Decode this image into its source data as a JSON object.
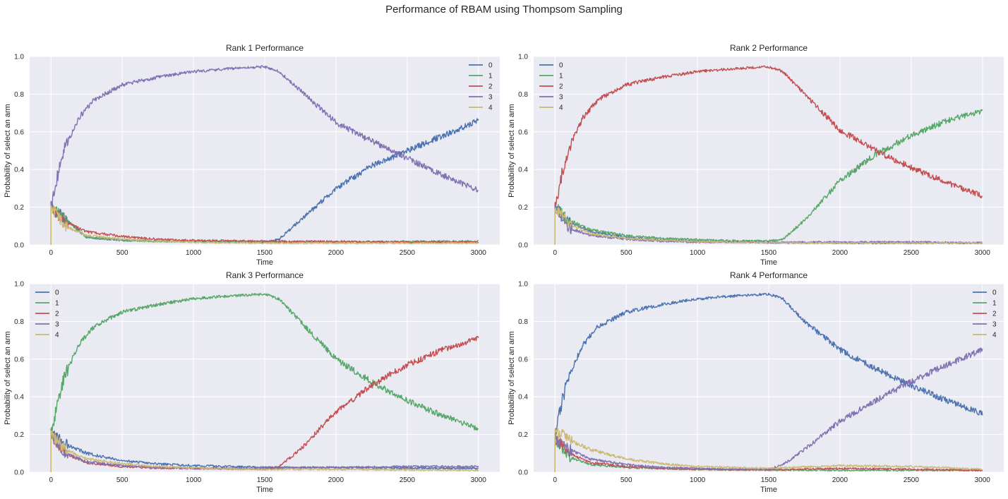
{
  "figure_title": "Performance of RBAM using Thompsom Sampling",
  "colors": {
    "background": "#EAEAF2",
    "grid": "#FFFFFF",
    "series": [
      "#4C72B0",
      "#55A868",
      "#C44E52",
      "#8172B2",
      "#CCB974"
    ]
  },
  "chart_data": [
    {
      "type": "line",
      "title": "Rank 1 Performance",
      "xlabel": "Time",
      "ylabel": "Probability of select an arm",
      "xlim": [
        -150,
        3150
      ],
      "ylim": [
        0.0,
        1.0
      ],
      "xticks": [
        0,
        500,
        1000,
        1500,
        2000,
        2500,
        3000
      ],
      "yticks": [
        0.0,
        0.2,
        0.4,
        0.6,
        0.8,
        1.0
      ],
      "legend_loc": "upper right",
      "legend": [
        "0",
        "1",
        "2",
        "3",
        "4"
      ],
      "series": [
        {
          "name": "0",
          "x": [
            0,
            250,
            500,
            750,
            1000,
            1250,
            1500,
            1600,
            1750,
            2000,
            2250,
            2500,
            2750,
            3000
          ],
          "y": [
            0.2,
            0.04,
            0.025,
            0.02,
            0.018,
            0.015,
            0.015,
            0.03,
            0.13,
            0.3,
            0.42,
            0.5,
            0.58,
            0.66
          ]
        },
        {
          "name": "1",
          "x": [
            0,
            250,
            500,
            750,
            1000,
            1500,
            2000,
            2500,
            3000
          ],
          "y": [
            0.2,
            0.04,
            0.025,
            0.02,
            0.018,
            0.015,
            0.015,
            0.018,
            0.02
          ]
        },
        {
          "name": "2",
          "x": [
            0,
            100,
            250,
            500,
            750,
            1000,
            1500,
            2000,
            2500,
            3000
          ],
          "y": [
            0.2,
            0.12,
            0.07,
            0.045,
            0.03,
            0.025,
            0.02,
            0.018,
            0.015,
            0.015
          ]
        },
        {
          "name": "3",
          "x": [
            0,
            50,
            100,
            200,
            300,
            500,
            750,
            1000,
            1250,
            1500,
            1600,
            1750,
            2000,
            2250,
            2500,
            2750,
            3000
          ],
          "y": [
            0.2,
            0.38,
            0.52,
            0.68,
            0.77,
            0.85,
            0.89,
            0.92,
            0.935,
            0.945,
            0.92,
            0.82,
            0.65,
            0.55,
            0.46,
            0.37,
            0.29
          ]
        },
        {
          "name": "4",
          "x": [
            0,
            100,
            250,
            500,
            750,
            1000,
            1500,
            2000,
            2500,
            3000
          ],
          "y": [
            0.2,
            0.1,
            0.05,
            0.03,
            0.02,
            0.015,
            0.01,
            0.01,
            0.01,
            0.01
          ]
        }
      ]
    },
    {
      "type": "line",
      "title": "Rank 2 Performance",
      "xlabel": "Time",
      "ylabel": "Probability of select an arm",
      "xlim": [
        -150,
        3150
      ],
      "ylim": [
        0.0,
        1.0
      ],
      "xticks": [
        0,
        500,
        1000,
        1500,
        2000,
        2500,
        3000
      ],
      "yticks": [
        0.0,
        0.2,
        0.4,
        0.6,
        0.8,
        1.0
      ],
      "legend_loc": "upper left",
      "legend": [
        "0",
        "1",
        "2",
        "3",
        "4"
      ],
      "series": [
        {
          "name": "0",
          "x": [
            0,
            100,
            250,
            500,
            750,
            1000,
            1500,
            2000,
            2500,
            3000
          ],
          "y": [
            0.2,
            0.12,
            0.07,
            0.04,
            0.025,
            0.02,
            0.012,
            0.01,
            0.01,
            0.01
          ]
        },
        {
          "name": "1",
          "x": [
            0,
            100,
            250,
            500,
            750,
            1000,
            1250,
            1500,
            1600,
            1750,
            2000,
            2250,
            2500,
            2750,
            3000
          ],
          "y": [
            0.2,
            0.13,
            0.08,
            0.05,
            0.035,
            0.028,
            0.022,
            0.02,
            0.03,
            0.13,
            0.34,
            0.48,
            0.58,
            0.66,
            0.71
          ]
        },
        {
          "name": "2",
          "x": [
            0,
            50,
            100,
            200,
            300,
            500,
            750,
            1000,
            1250,
            1500,
            1600,
            1750,
            2000,
            2250,
            2500,
            2750,
            3000
          ],
          "y": [
            0.2,
            0.38,
            0.52,
            0.68,
            0.77,
            0.85,
            0.89,
            0.92,
            0.935,
            0.945,
            0.92,
            0.8,
            0.61,
            0.5,
            0.41,
            0.33,
            0.26
          ]
        },
        {
          "name": "3",
          "x": [
            0,
            100,
            250,
            500,
            750,
            1000,
            1500,
            2000,
            2500,
            3000
          ],
          "y": [
            0.2,
            0.09,
            0.05,
            0.03,
            0.02,
            0.015,
            0.015,
            0.015,
            0.015,
            0.012
          ]
        },
        {
          "name": "4",
          "x": [
            0,
            100,
            250,
            500,
            750,
            1000,
            1500,
            2000,
            2500,
            3000
          ],
          "y": [
            0.2,
            0.11,
            0.06,
            0.035,
            0.025,
            0.018,
            0.012,
            0.01,
            0.01,
            0.01
          ]
        }
      ]
    },
    {
      "type": "line",
      "title": "Rank 3 Performance",
      "xlabel": "Time",
      "ylabel": "Probability of select an arm",
      "xlim": [
        -150,
        3150
      ],
      "ylim": [
        0.0,
        1.0
      ],
      "xticks": [
        0,
        500,
        1000,
        1500,
        2000,
        2500,
        3000
      ],
      "yticks": [
        0.0,
        0.2,
        0.4,
        0.6,
        0.8,
        1.0
      ],
      "legend_loc": "upper left",
      "legend": [
        "0",
        "1",
        "2",
        "3",
        "4"
      ],
      "series": [
        {
          "name": "0",
          "x": [
            0,
            100,
            250,
            500,
            750,
            1000,
            1500,
            2000,
            2500,
            3000
          ],
          "y": [
            0.2,
            0.15,
            0.1,
            0.06,
            0.045,
            0.035,
            0.025,
            0.025,
            0.022,
            0.02
          ]
        },
        {
          "name": "1",
          "x": [
            0,
            50,
            100,
            200,
            300,
            500,
            750,
            1000,
            1250,
            1500,
            1600,
            1750,
            2000,
            2250,
            2500,
            2750,
            3000
          ],
          "y": [
            0.2,
            0.38,
            0.52,
            0.68,
            0.77,
            0.85,
            0.89,
            0.92,
            0.935,
            0.945,
            0.92,
            0.8,
            0.6,
            0.48,
            0.38,
            0.3,
            0.23
          ]
        },
        {
          "name": "2",
          "x": [
            0,
            100,
            250,
            500,
            750,
            1000,
            1250,
            1500,
            1600,
            1750,
            2000,
            2250,
            2500,
            2750,
            3000
          ],
          "y": [
            0.2,
            0.1,
            0.05,
            0.03,
            0.022,
            0.02,
            0.018,
            0.015,
            0.03,
            0.12,
            0.32,
            0.46,
            0.57,
            0.65,
            0.71
          ]
        },
        {
          "name": "3",
          "x": [
            0,
            100,
            250,
            500,
            750,
            1000,
            1500,
            2000,
            2500,
            3000
          ],
          "y": [
            0.2,
            0.1,
            0.055,
            0.035,
            0.025,
            0.02,
            0.02,
            0.025,
            0.03,
            0.03
          ]
        },
        {
          "name": "4",
          "x": [
            0,
            100,
            250,
            500,
            750,
            1000,
            1500,
            2000,
            2500,
            3000
          ],
          "y": [
            0.2,
            0.12,
            0.07,
            0.045,
            0.03,
            0.022,
            0.015,
            0.015,
            0.012,
            0.01
          ]
        }
      ]
    },
    {
      "type": "line",
      "title": "Rank 4 Performance",
      "xlabel": "Time",
      "ylabel": "Probability of select an arm",
      "xlim": [
        -150,
        3150
      ],
      "ylim": [
        0.0,
        1.0
      ],
      "xticks": [
        0,
        500,
        1000,
        1500,
        2000,
        2500,
        3000
      ],
      "yticks": [
        0.0,
        0.2,
        0.4,
        0.6,
        0.8,
        1.0
      ],
      "legend_loc": "upper right",
      "legend": [
        "0",
        "1",
        "2",
        "3",
        "4"
      ],
      "series": [
        {
          "name": "0",
          "x": [
            0,
            50,
            100,
            200,
            300,
            500,
            750,
            1000,
            1250,
            1500,
            1600,
            1750,
            2000,
            2250,
            2500,
            2750,
            3000
          ],
          "y": [
            0.2,
            0.38,
            0.52,
            0.68,
            0.77,
            0.85,
            0.89,
            0.92,
            0.935,
            0.945,
            0.92,
            0.8,
            0.65,
            0.55,
            0.46,
            0.38,
            0.31
          ]
        },
        {
          "name": "1",
          "x": [
            0,
            100,
            250,
            500,
            750,
            1000,
            1500,
            2000,
            2500,
            3000
          ],
          "y": [
            0.18,
            0.08,
            0.04,
            0.025,
            0.02,
            0.015,
            0.012,
            0.01,
            0.01,
            0.01
          ]
        },
        {
          "name": "2",
          "x": [
            0,
            100,
            250,
            500,
            750,
            1000,
            1500,
            2000,
            2500,
            3000
          ],
          "y": [
            0.18,
            0.1,
            0.05,
            0.03,
            0.02,
            0.015,
            0.012,
            0.02,
            0.015,
            0.01
          ]
        },
        {
          "name": "3",
          "x": [
            0,
            100,
            250,
            500,
            750,
            1000,
            1250,
            1500,
            1600,
            1750,
            2000,
            2250,
            2500,
            2750,
            3000
          ],
          "y": [
            0.18,
            0.12,
            0.07,
            0.04,
            0.025,
            0.02,
            0.015,
            0.015,
            0.04,
            0.12,
            0.27,
            0.38,
            0.48,
            0.57,
            0.65
          ]
        },
        {
          "name": "4",
          "x": [
            0,
            50,
            100,
            250,
            500,
            750,
            1000,
            1500,
            2000,
            2500,
            3000
          ],
          "y": [
            0.2,
            0.21,
            0.17,
            0.12,
            0.07,
            0.045,
            0.03,
            0.02,
            0.035,
            0.03,
            0.015
          ]
        }
      ]
    }
  ]
}
